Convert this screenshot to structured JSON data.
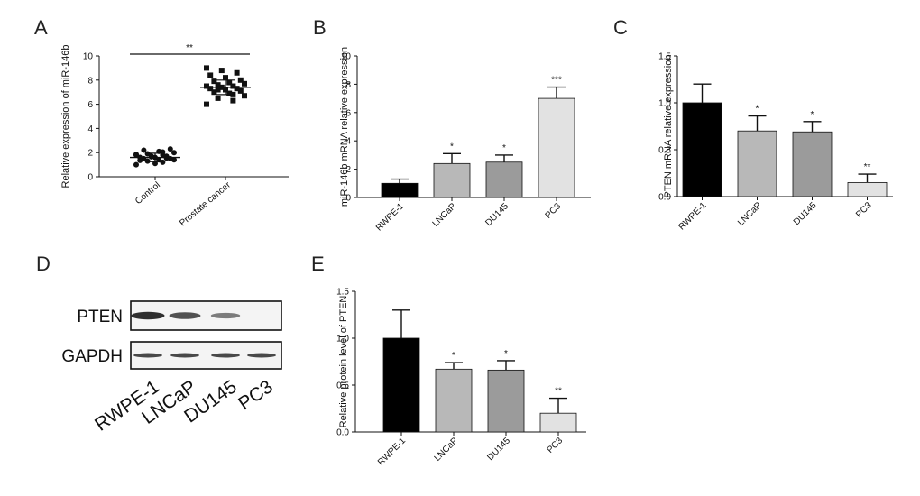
{
  "panel_labels": [
    "A",
    "B",
    "C",
    "D",
    "E"
  ],
  "chart_data": [
    {
      "panel": "A",
      "type": "scatter",
      "ylabel": "Relative expression of miR-146b",
      "ylim": [
        0,
        10
      ],
      "yticks": [
        "0",
        "2",
        "4",
        "6",
        "8",
        "10"
      ],
      "categories": [
        "Control",
        "Prostate cancer"
      ],
      "groups": [
        {
          "name": "Control",
          "marker": "circle",
          "mean": 1.6,
          "sd": 0.35,
          "values": [
            1.0,
            1.2,
            1.3,
            1.4,
            1.4,
            1.5,
            1.5,
            1.6,
            1.6,
            1.7,
            1.7,
            1.8,
            1.8,
            1.9,
            2.0,
            2.1,
            2.2,
            2.3,
            1.1,
            1.35,
            1.55,
            1.65,
            1.85,
            2.05
          ]
        },
        {
          "name": "Prostate cancer",
          "marker": "square",
          "mean": 7.4,
          "sd": 0.6,
          "values": [
            6.0,
            6.3,
            6.5,
            6.7,
            6.9,
            7.0,
            7.1,
            7.2,
            7.3,
            7.3,
            7.4,
            7.5,
            7.5,
            7.6,
            7.7,
            7.8,
            7.9,
            8.0,
            8.2,
            8.4,
            8.6,
            8.8,
            9.0,
            6.8,
            7.2
          ]
        }
      ],
      "bracket_label": "**"
    },
    {
      "panel": "B",
      "type": "bar",
      "ylabel": "miR-146b mRNA relative expression",
      "ylim": [
        0,
        10
      ],
      "yticks": [
        "0",
        "2",
        "4",
        "6",
        "8",
        "10"
      ],
      "categories": [
        "RWPE-1",
        "LNCaP",
        "DU145",
        "PC3"
      ],
      "values": [
        1.0,
        2.4,
        2.5,
        7.0
      ],
      "errors": [
        0.3,
        0.7,
        0.5,
        0.8
      ],
      "significance": [
        "",
        "*",
        "*",
        "***"
      ],
      "colors": [
        "#000000",
        "#b8b8b8",
        "#9b9b9b",
        "#e2e2e2"
      ]
    },
    {
      "panel": "C",
      "type": "bar",
      "ylabel": "PTEN mRNA relative expression",
      "ylim": [
        0,
        1.5
      ],
      "yticks": [
        "0.0",
        "0.5",
        "1.0",
        "1.5"
      ],
      "categories": [
        "RWPE-1",
        "LNCaP",
        "DU145",
        "PC3"
      ],
      "values": [
        1.0,
        0.7,
        0.69,
        0.15
      ],
      "errors": [
        0.2,
        0.16,
        0.11,
        0.09
      ],
      "significance": [
        "",
        "*",
        "*",
        "**"
      ],
      "colors": [
        "#000000",
        "#b8b8b8",
        "#9b9b9b",
        "#e2e2e2"
      ]
    },
    {
      "panel": "E",
      "type": "bar",
      "ylabel": "Relative protein level of PTEN",
      "ylim": [
        0,
        1.5
      ],
      "yticks": [
        "0.0",
        "0.5",
        "1.0",
        "1.5"
      ],
      "categories": [
        "RWPE-1",
        "LNCaP",
        "DU145",
        "PC3"
      ],
      "values": [
        1.0,
        0.67,
        0.66,
        0.2
      ],
      "errors": [
        0.3,
        0.07,
        0.1,
        0.16
      ],
      "significance": [
        "",
        "*",
        "*",
        "**"
      ],
      "colors": [
        "#000000",
        "#b8b8b8",
        "#9b9b9b",
        "#e2e2e2"
      ]
    }
  ],
  "blot": {
    "rows": [
      {
        "label": "PTEN",
        "intensities": [
          0.9,
          0.7,
          0.45,
          0.0
        ]
      },
      {
        "label": "GAPDH",
        "intensities": [
          0.75,
          0.75,
          0.75,
          0.75
        ]
      }
    ],
    "lanes": [
      "RWPE-1",
      "LNCaP",
      "DU145",
      "PC3"
    ]
  }
}
